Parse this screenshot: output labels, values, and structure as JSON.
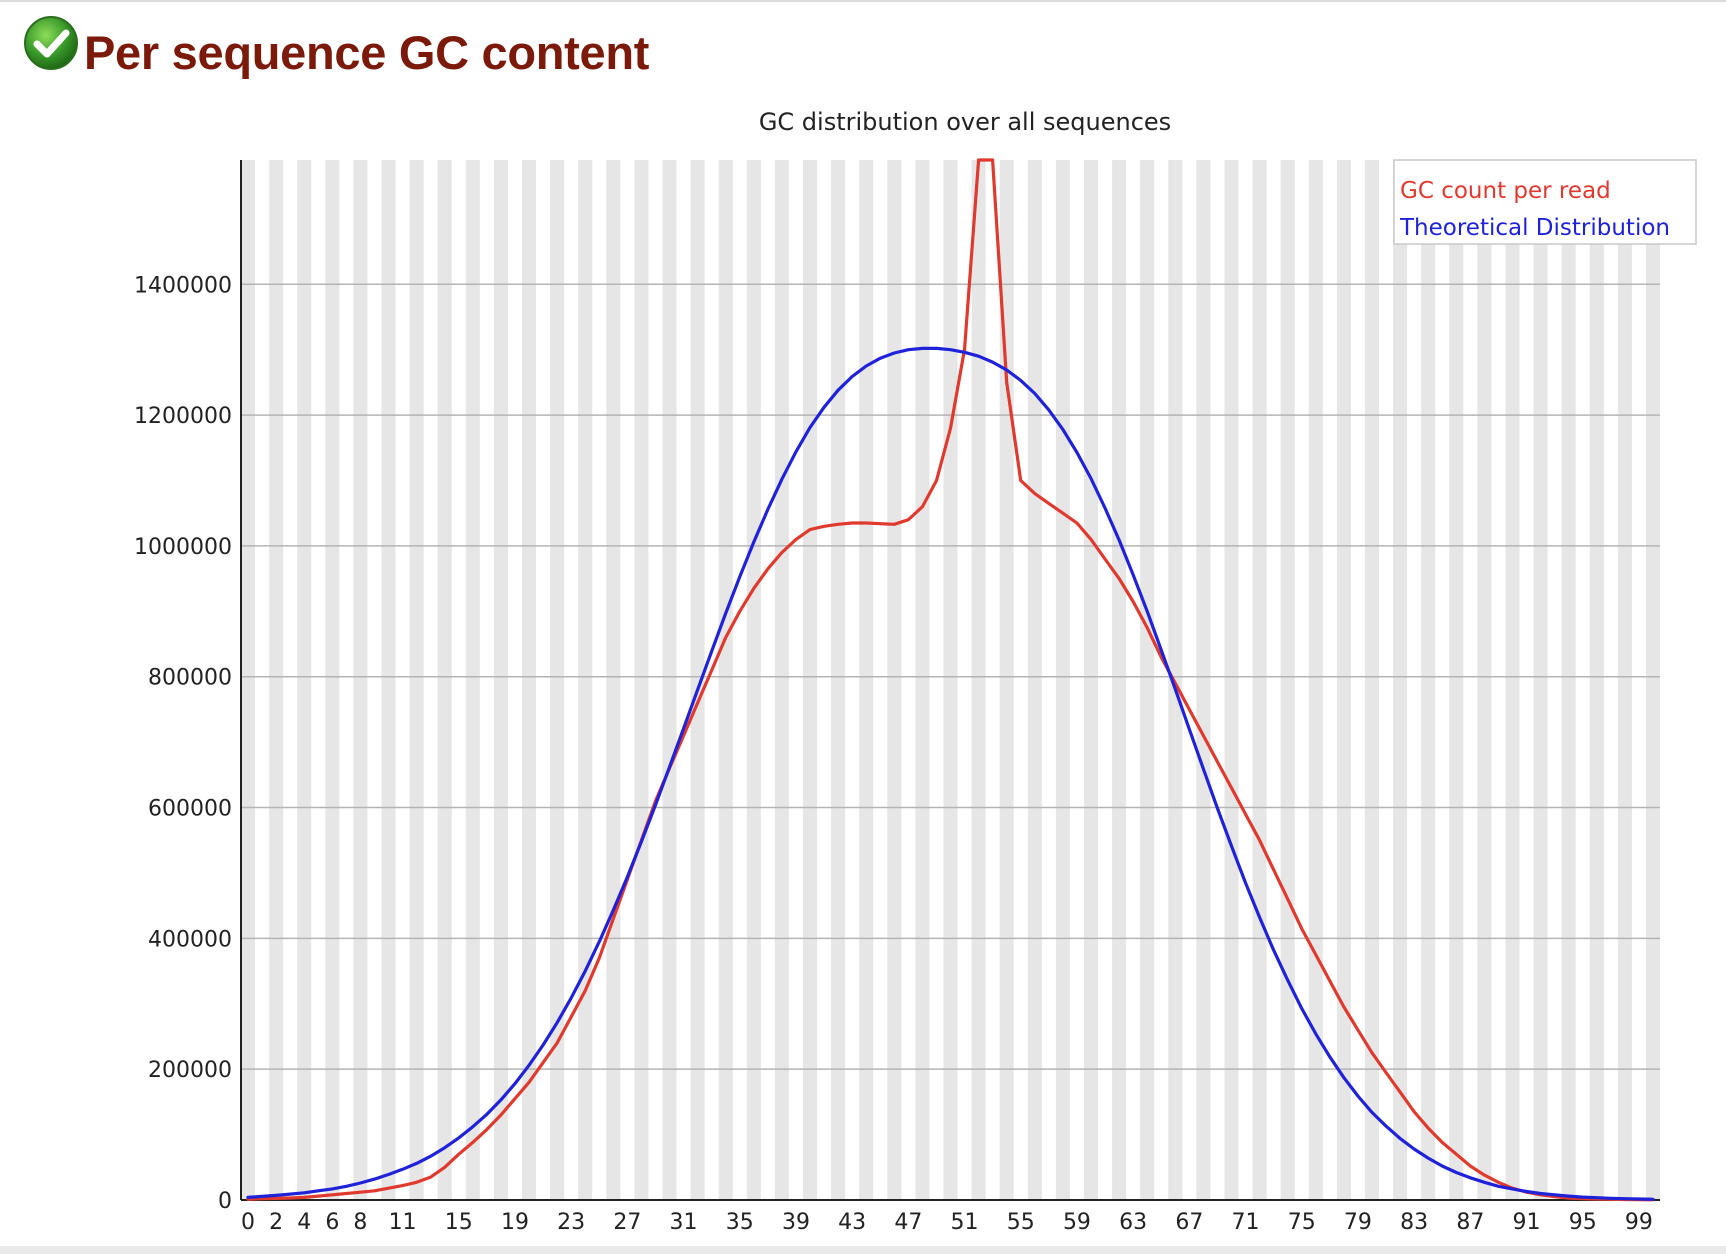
{
  "module": {
    "title": "Per sequence GC content",
    "status_icon": "check-circle-icon",
    "status_color": "#3a9a2a"
  },
  "chart_data": {
    "type": "line",
    "title": "GC distribution over all sequences",
    "xlabel": "",
    "ylabel": "",
    "x": [
      0,
      1,
      2,
      3,
      4,
      5,
      6,
      7,
      8,
      9,
      10,
      11,
      12,
      13,
      14,
      15,
      16,
      17,
      18,
      19,
      20,
      21,
      22,
      23,
      24,
      25,
      26,
      27,
      28,
      29,
      30,
      31,
      32,
      33,
      34,
      35,
      36,
      37,
      38,
      39,
      40,
      41,
      42,
      43,
      44,
      45,
      46,
      47,
      48,
      49,
      50,
      51,
      52,
      53,
      54,
      55,
      56,
      57,
      58,
      59,
      60,
      61,
      62,
      63,
      64,
      65,
      66,
      67,
      68,
      69,
      70,
      71,
      72,
      73,
      74,
      75,
      76,
      77,
      78,
      79,
      80,
      81,
      82,
      83,
      84,
      85,
      86,
      87,
      88,
      89,
      90,
      91,
      92,
      93,
      94,
      95,
      96,
      97,
      98,
      99,
      100
    ],
    "x_tick_labels": [
      "0",
      "2",
      "4",
      "6",
      "8",
      "11",
      "15",
      "19",
      "23",
      "27",
      "31",
      "35",
      "39",
      "43",
      "47",
      "51",
      "55",
      "59",
      "63",
      "67",
      "71",
      "75",
      "79",
      "83",
      "87",
      "91",
      "95",
      "99"
    ],
    "y_ticks": [
      0,
      200000,
      400000,
      600000,
      800000,
      1000000,
      1200000,
      1400000
    ],
    "y_tick_labels": [
      "0",
      "200000",
      "400000",
      "600000",
      "800000",
      "1000000",
      "1200000",
      "1400000"
    ],
    "xlim": [
      0,
      100
    ],
    "ylim": [
      0,
      1590000
    ],
    "grid": "alternating vertical bands, horizontal gridlines",
    "legend_position": "top-right",
    "series": [
      {
        "name": "GC count per read",
        "color": "#e03a2e",
        "values": [
          1000,
          2000,
          2500,
          3000,
          4000,
          6000,
          8000,
          10000,
          12000,
          14000,
          18000,
          22000,
          27000,
          35000,
          50000,
          70000,
          88000,
          108000,
          130000,
          155000,
          180000,
          210000,
          240000,
          280000,
          320000,
          370000,
          430000,
          490000,
          550000,
          610000,
          660000,
          710000,
          760000,
          810000,
          860000,
          900000,
          935000,
          965000,
          990000,
          1010000,
          1025000,
          1030000,
          1033000,
          1035000,
          1035000,
          1034000,
          1033000,
          1040000,
          1060000,
          1100000,
          1180000,
          1300000,
          1590000,
          1590000,
          1250000,
          1100000,
          1080000,
          1065000,
          1050000,
          1035000,
          1010000,
          980000,
          950000,
          915000,
          875000,
          830000,
          790000,
          750000,
          710000,
          670000,
          630000,
          590000,
          550000,
          505000,
          460000,
          415000,
          375000,
          335000,
          295000,
          260000,
          225000,
          195000,
          165000,
          135000,
          110000,
          88000,
          70000,
          52000,
          38000,
          27000,
          18000,
          12000,
          8000,
          5000,
          3000,
          2000,
          1500,
          1000,
          800,
          500,
          300
        ]
      },
      {
        "name": "Theoretical Distribution",
        "color": "#1f22d8",
        "values": [
          4000,
          5500,
          7000,
          9000,
          11000,
          14000,
          17000,
          21000,
          26000,
          32000,
          39000,
          47000,
          56000,
          67000,
          80000,
          95000,
          112000,
          131000,
          153000,
          178000,
          206000,
          237000,
          271000,
          309000,
          350000,
          395000,
          443000,
          494000,
          548000,
          604000,
          662000,
          721000,
          780000,
          839000,
          897000,
          953000,
          1006000,
          1056000,
          1102000,
          1144000,
          1181000,
          1212000,
          1238000,
          1259000,
          1275000,
          1287000,
          1295000,
          1300000,
          1302000,
          1302000,
          1300000,
          1296000,
          1290000,
          1281000,
          1269000,
          1253000,
          1233000,
          1208000,
          1178000,
          1143000,
          1103000,
          1058000,
          1009000,
          956000,
          900000,
          841000,
          781000,
          720000,
          659000,
          599000,
          541000,
          485000,
          432000,
          382000,
          336000,
          293000,
          254000,
          219000,
          187000,
          159000,
          134000,
          113000,
          94000,
          78000,
          64000,
          52000,
          42000,
          34000,
          27000,
          21000,
          17000,
          13000,
          10000,
          8000,
          6000,
          4500,
          3500,
          2600,
          2000,
          1500,
          1100
        ]
      }
    ]
  }
}
